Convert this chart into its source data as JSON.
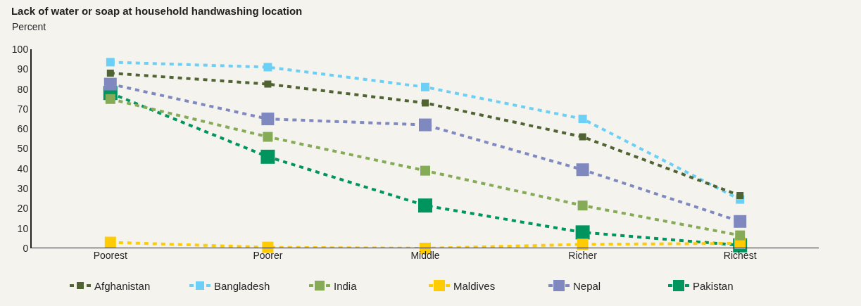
{
  "chart_data": {
    "type": "line",
    "title": "Lack of water or soap at household handwashing location",
    "ylabel": "Percent",
    "categories": [
      "Poorest",
      "Poorer",
      "Middle",
      "Richer",
      "Richest"
    ],
    "series": [
      {
        "name": "Afghanistan",
        "color": "#4f6432",
        "values": [
          88,
          82.5,
          73,
          56,
          26.5
        ]
      },
      {
        "name": "Bangladesh",
        "color": "#6ccff6",
        "values": [
          93.5,
          91,
          81,
          65,
          24.5
        ]
      },
      {
        "name": "India",
        "color": "#86ab57",
        "values": [
          75,
          56,
          39,
          21.5,
          6.5
        ]
      },
      {
        "name": "Maldives",
        "color": "#ffcb05",
        "values": [
          3,
          0.5,
          0,
          2,
          2.5
        ]
      },
      {
        "name": "Nepal",
        "color": "#7f89c0",
        "values": [
          82.5,
          65,
          62,
          39.5,
          13.5
        ]
      },
      {
        "name": "Pakistan",
        "color": "#00945e",
        "values": [
          78,
          46,
          21.5,
          8,
          1.5
        ]
      }
    ],
    "ylim": [
      0,
      100
    ],
    "yticks": [
      0,
      10,
      20,
      30,
      40,
      50,
      60,
      70,
      80,
      90,
      100
    ],
    "grid": false,
    "legend": "bottom",
    "marker": "square",
    "line_style": "dashed"
  }
}
